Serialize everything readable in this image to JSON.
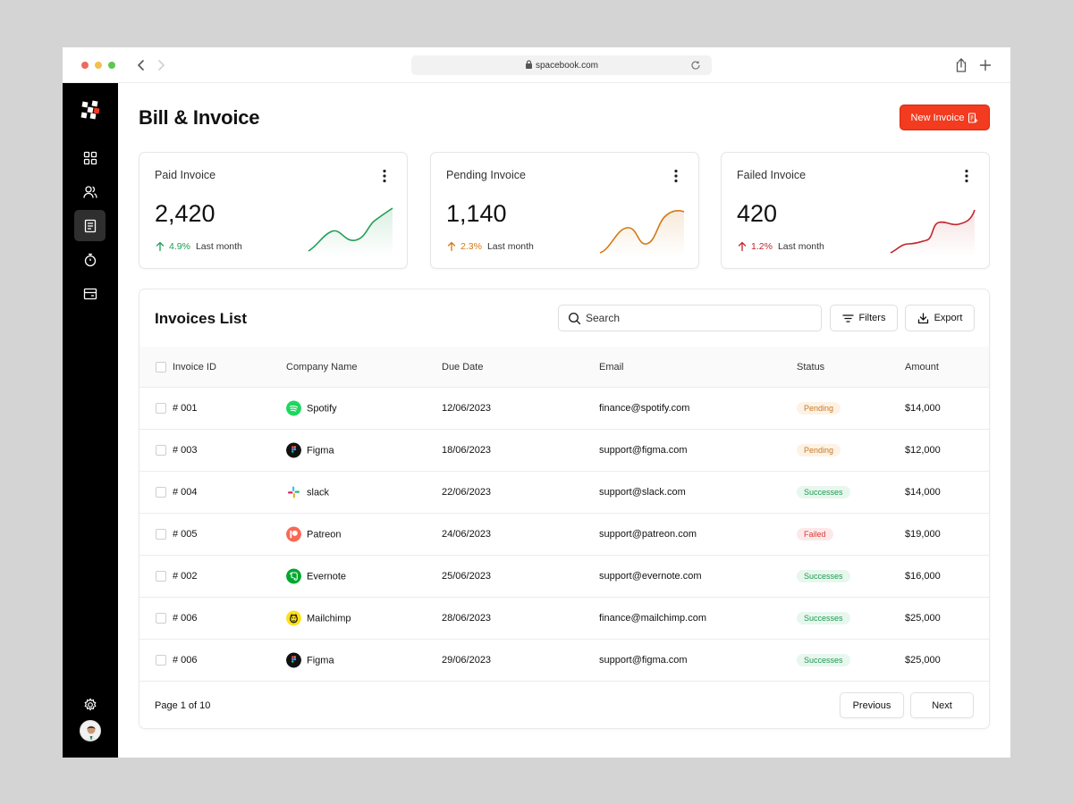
{
  "browser": {
    "url": "spacebook.com"
  },
  "sidebar": {
    "items": [
      {
        "icon": "grid-icon",
        "active": false
      },
      {
        "icon": "users-icon",
        "active": false
      },
      {
        "icon": "document-icon",
        "active": true
      },
      {
        "icon": "timer-icon",
        "active": false
      },
      {
        "icon": "card-icon",
        "active": false
      },
      {
        "icon": "gear-icon",
        "active": false
      }
    ]
  },
  "page": {
    "title": "Bill & Invoice",
    "new_invoice_label": "New Invoice"
  },
  "stats": [
    {
      "title": "Paid Invoice",
      "value": "2,420",
      "change": "4.9%",
      "period": "Last month",
      "direction": "up",
      "color": "#1f9d55"
    },
    {
      "title": "Pending Invoice",
      "value": "1,140",
      "change": "2.3%",
      "period": "Last month",
      "direction": "up",
      "color": "#d17a14"
    },
    {
      "title": "Failed Invoice",
      "value": "420",
      "change": "1.2%",
      "period": "Last month",
      "direction": "up",
      "color": "#c0262d"
    }
  ],
  "invoices": {
    "title": "Invoices List",
    "search_placeholder": "Search",
    "filters_label": "Filters",
    "export_label": "Export",
    "columns": [
      "Invoice ID",
      "Company Name",
      "Due Date",
      "Email",
      "Status",
      "Amount"
    ],
    "rows": [
      {
        "id": "# 001",
        "company": "Spotify",
        "logo": "spotify-logo",
        "due": "12/06/2023",
        "email": "finance@spotify.com",
        "status": "Pending",
        "amount": "$14,000"
      },
      {
        "id": "# 003",
        "company": "Figma",
        "logo": "figma-logo",
        "due": "18/06/2023",
        "email": "support@figma.com",
        "status": "Pending",
        "amount": "$12,000"
      },
      {
        "id": "# 004",
        "company": "slack",
        "logo": "slack-logo",
        "due": "22/06/2023",
        "email": "support@slack.com",
        "status": "Successes",
        "amount": "$14,000"
      },
      {
        "id": "# 005",
        "company": "Patreon",
        "logo": "patreon-logo",
        "due": "24/06/2023",
        "email": "support@patreon.com",
        "status": "Failed",
        "amount": "$19,000"
      },
      {
        "id": "# 002",
        "company": "Evernote",
        "logo": "evernote-logo",
        "due": "25/06/2023",
        "email": "support@evernote.com",
        "status": "Successes",
        "amount": "$16,000"
      },
      {
        "id": "# 006",
        "company": "Mailchimp",
        "logo": "mailchimp-logo",
        "due": "28/06/2023",
        "email": "finance@mailchimp.com",
        "status": "Successes",
        "amount": "$25,000"
      },
      {
        "id": "# 006",
        "company": "Figma",
        "logo": "figma-logo",
        "due": "29/06/2023",
        "email": "support@figma.com",
        "status": "Successes",
        "amount": "$25,000"
      }
    ],
    "page_info": "Page 1 of 10",
    "previous_label": "Previous",
    "next_label": "Next"
  },
  "colors": {
    "accent": "#f23b1f",
    "sidebar": "#000000",
    "pending": "#c77a24",
    "success": "#1e9a55",
    "failed": "#d93a3a"
  }
}
